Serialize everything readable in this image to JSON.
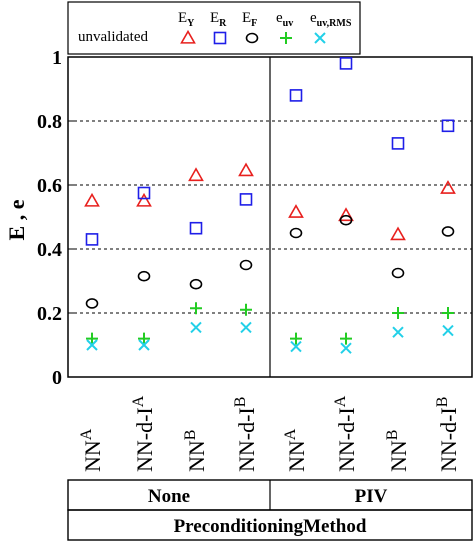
{
  "chart_data": {
    "type": "scatter",
    "ylabel": "E , e",
    "ylim": [
      0,
      1
    ],
    "yticks": [
      0,
      0.2,
      0.4,
      0.6,
      0.8,
      1
    ],
    "ytick_labels": [
      "0",
      "0.2",
      "0.4",
      "0.6",
      "0.8",
      "1"
    ],
    "grid": "dashed horizontal at 0.2, 0.4, 0.6, 0.8",
    "categories": [
      {
        "base": "NN",
        "sup": "A"
      },
      {
        "base": "NN-d-I",
        "sup": "A"
      },
      {
        "base": "NN",
        "sup": "B"
      },
      {
        "base": "NN-d-I",
        "sup": "B"
      },
      {
        "base": "NN",
        "sup": "A"
      },
      {
        "base": "NN-d-I",
        "sup": "A"
      },
      {
        "base": "NN",
        "sup": "B"
      },
      {
        "base": "NN-d-I",
        "sup": "B"
      }
    ],
    "groups": [
      {
        "label": "None",
        "categories": [
          0,
          1,
          2,
          3
        ]
      },
      {
        "label": "PIV",
        "categories": [
          4,
          5,
          6,
          7
        ]
      }
    ],
    "group_axis_title": "PreconditioningMethod",
    "legend": {
      "title": "unvalidated",
      "placement": "top",
      "entries": [
        {
          "base": "E",
          "sub": "Y",
          "marker": "triangle",
          "color": "#e8201e"
        },
        {
          "base": "E",
          "sub": "R",
          "marker": "square",
          "color": "#1e1ee8"
        },
        {
          "base": "E",
          "sub": "F",
          "marker": "circle",
          "color": "#000000"
        },
        {
          "base": "e",
          "sub": "uv",
          "marker": "plus",
          "color": "#22cc22"
        },
        {
          "base": "e",
          "sub": "uv,RMS",
          "marker": "cross",
          "color": "#22d0e8"
        }
      ]
    },
    "series": [
      {
        "key": "E_Y",
        "marker": "triangle",
        "color": "#e8201e",
        "values": [
          0.55,
          0.55,
          0.63,
          0.645,
          0.515,
          0.505,
          0.445,
          0.59
        ]
      },
      {
        "key": "E_R",
        "marker": "square",
        "color": "#1e1ee8",
        "values": [
          0.43,
          0.575,
          0.465,
          0.555,
          0.88,
          0.98,
          0.73,
          0.785
        ]
      },
      {
        "key": "E_F",
        "marker": "circle",
        "color": "#000000",
        "values": [
          0.23,
          0.315,
          0.29,
          0.35,
          0.45,
          0.49,
          0.325,
          0.455
        ]
      },
      {
        "key": "e_uv",
        "marker": "plus",
        "color": "#22cc22",
        "values": [
          0.12,
          0.12,
          0.215,
          0.21,
          0.12,
          0.12,
          0.2,
          0.2
        ]
      },
      {
        "key": "e_uv_RMS",
        "marker": "cross",
        "color": "#22d0e8",
        "values": [
          0.1,
          0.1,
          0.155,
          0.155,
          0.095,
          0.09,
          0.14,
          0.145
        ]
      }
    ]
  }
}
